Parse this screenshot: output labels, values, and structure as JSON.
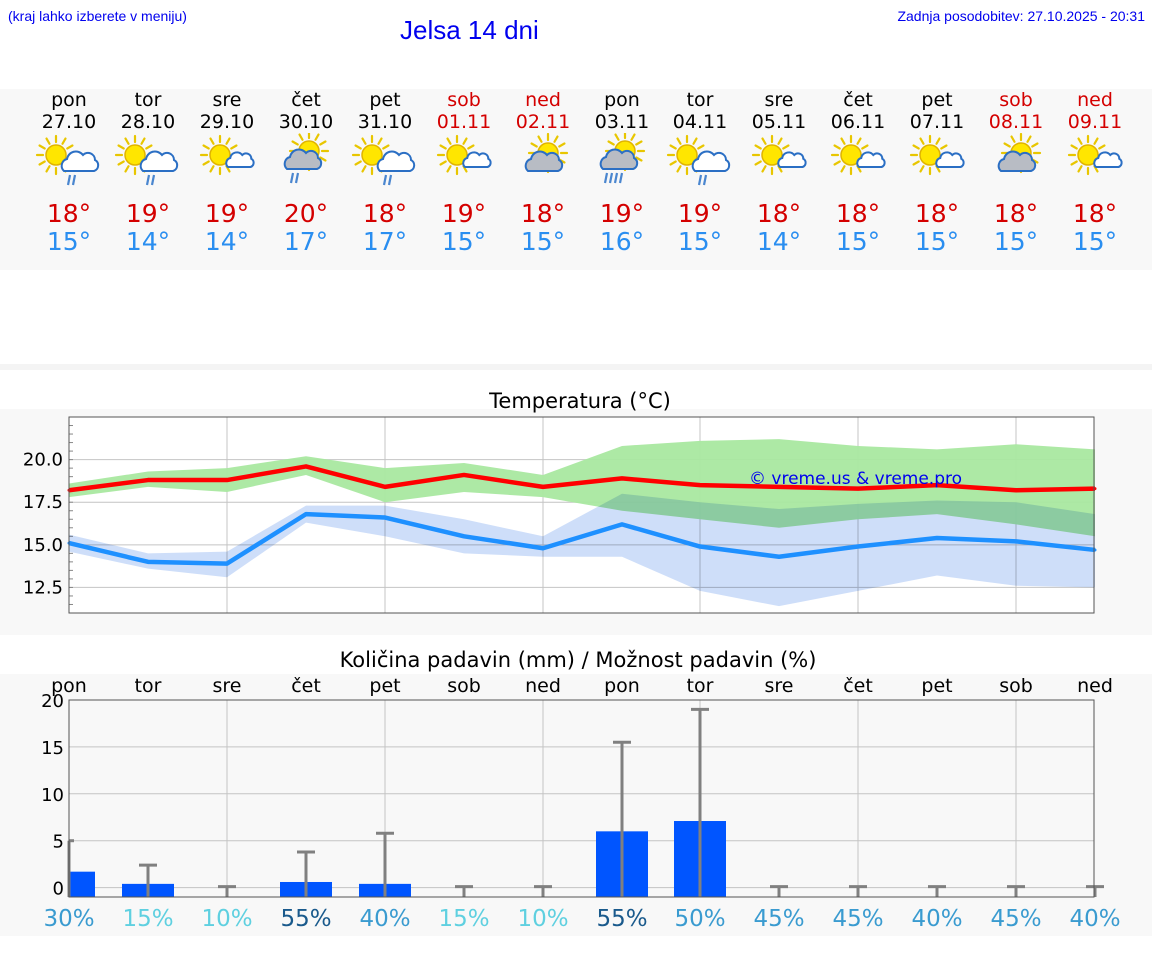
{
  "header": {
    "hint": "(kraj lahko izberete v meniju)",
    "title": "Jelsa 14 dni",
    "updated": "Zadnja posodobitev: 27.10.2025 - 20:31"
  },
  "days": [
    {
      "name": "pon",
      "date": "27.10",
      "weekend": false,
      "icon": "sun-cloud-light-rain-icon",
      "tmax": "18°",
      "tmin": "15°"
    },
    {
      "name": "tor",
      "date": "28.10",
      "weekend": false,
      "icon": "sun-cloud-light-rain-icon",
      "tmax": "19°",
      "tmin": "14°"
    },
    {
      "name": "sre",
      "date": "29.10",
      "weekend": false,
      "icon": "sun-small-cloud-icon",
      "tmax": "19°",
      "tmin": "14°"
    },
    {
      "name": "čet",
      "date": "30.10",
      "weekend": false,
      "icon": "cloud-sun-rain-icon",
      "tmax": "20°",
      "tmin": "17°"
    },
    {
      "name": "pet",
      "date": "31.10",
      "weekend": false,
      "icon": "sun-cloud-light-rain-icon",
      "tmax": "18°",
      "tmin": "17°"
    },
    {
      "name": "sob",
      "date": "01.11",
      "weekend": true,
      "icon": "sun-small-cloud-icon",
      "tmax": "19°",
      "tmin": "15°"
    },
    {
      "name": "ned",
      "date": "02.11",
      "weekend": true,
      "icon": "cloud-sun-icon",
      "tmax": "18°",
      "tmin": "15°"
    },
    {
      "name": "pon",
      "date": "03.11",
      "weekend": false,
      "icon": "cloud-sun-heavy-rain-icon",
      "tmax": "19°",
      "tmin": "16°"
    },
    {
      "name": "tor",
      "date": "04.11",
      "weekend": false,
      "icon": "sun-cloud-light-rain-icon",
      "tmax": "19°",
      "tmin": "15°"
    },
    {
      "name": "sre",
      "date": "05.11",
      "weekend": false,
      "icon": "sun-small-cloud-icon",
      "tmax": "18°",
      "tmin": "14°"
    },
    {
      "name": "čet",
      "date": "06.11",
      "weekend": false,
      "icon": "sun-small-cloud-icon",
      "tmax": "18°",
      "tmin": "15°"
    },
    {
      "name": "pet",
      "date": "07.11",
      "weekend": false,
      "icon": "sun-small-cloud-icon",
      "tmax": "18°",
      "tmin": "15°"
    },
    {
      "name": "sob",
      "date": "08.11",
      "weekend": true,
      "icon": "cloud-sun-icon",
      "tmax": "18°",
      "tmin": "15°"
    },
    {
      "name": "ned",
      "date": "09.11",
      "weekend": true,
      "icon": "sun-small-cloud-icon",
      "tmax": "18°",
      "tmin": "15°"
    }
  ],
  "chart_data": [
    {
      "type": "line",
      "title": "Temperatura (°C)",
      "watermark": "© vreme.us & vreme.pro",
      "yticks": [
        12.5,
        15.0,
        17.5,
        20.0
      ],
      "ylim": [
        11.0,
        22.5
      ],
      "grid": true,
      "x": [
        0,
        1,
        2,
        3,
        4,
        5,
        6,
        7,
        8,
        9,
        10,
        11,
        12,
        13
      ],
      "series": [
        {
          "color": "#ff0000",
          "values": [
            18.2,
            18.8,
            18.8,
            19.6,
            18.4,
            19.1,
            18.4,
            18.9,
            18.5,
            18.4,
            18.3,
            18.5,
            18.2,
            18.3
          ],
          "range_color": "#a9e8a0",
          "band_low": [
            17.8,
            18.4,
            18.1,
            19.1,
            17.5,
            18.1,
            17.8,
            17.0,
            16.5,
            16.0,
            16.5,
            16.8,
            16.2,
            15.5
          ],
          "band_high": [
            18.6,
            19.3,
            19.5,
            20.2,
            19.5,
            19.8,
            19.1,
            20.8,
            21.1,
            21.2,
            20.8,
            20.6,
            20.9,
            20.6
          ]
        },
        {
          "color": "#1e90ff",
          "values": [
            15.1,
            14.0,
            13.9,
            16.8,
            16.6,
            15.5,
            14.8,
            16.2,
            14.9,
            14.3,
            14.9,
            15.4,
            15.2,
            14.7
          ],
          "range_color": "#aec8f5",
          "band_low": [
            14.6,
            13.6,
            13.1,
            16.3,
            15.5,
            14.5,
            14.3,
            14.3,
            12.3,
            11.4,
            12.3,
            13.2,
            12.6,
            12.5
          ],
          "band_high": [
            15.6,
            14.5,
            14.6,
            17.3,
            17.3,
            16.5,
            15.5,
            18.0,
            17.5,
            17.1,
            17.4,
            17.6,
            17.5,
            16.8
          ]
        }
      ]
    },
    {
      "type": "bar",
      "title": "Količina padavin (mm) / Možnost padavin (%)",
      "categories": [
        "pon",
        "tor",
        "sre",
        "čet",
        "pet",
        "sob",
        "ned",
        "pon",
        "tor",
        "sre",
        "čet",
        "pet",
        "sob",
        "ned"
      ],
      "yticks": [
        0,
        5,
        10,
        15,
        20
      ],
      "ylim": [
        -1,
        20
      ],
      "grid": true,
      "values": [
        1.7,
        0.4,
        0,
        0.6,
        0.4,
        0,
        0,
        6.0,
        7.1,
        0,
        0,
        0,
        0,
        0
      ],
      "value_max": [
        5.0,
        2.4,
        0.1,
        3.8,
        5.8,
        0.1,
        0.1,
        15.5,
        19.0,
        0.1,
        0.1,
        0.1,
        0.1,
        0.1
      ],
      "probability_labels": [
        "30%",
        "15%",
        "10%",
        "55%",
        "40%",
        "15%",
        "10%",
        "55%",
        "50%",
        "45%",
        "45%",
        "40%",
        "45%",
        "40%"
      ],
      "probability": [
        30,
        15,
        10,
        55,
        40,
        15,
        10,
        55,
        50,
        45,
        45,
        40,
        45,
        40
      ],
      "bar_color": "#0055ff",
      "whisker_color": "#808080"
    }
  ]
}
